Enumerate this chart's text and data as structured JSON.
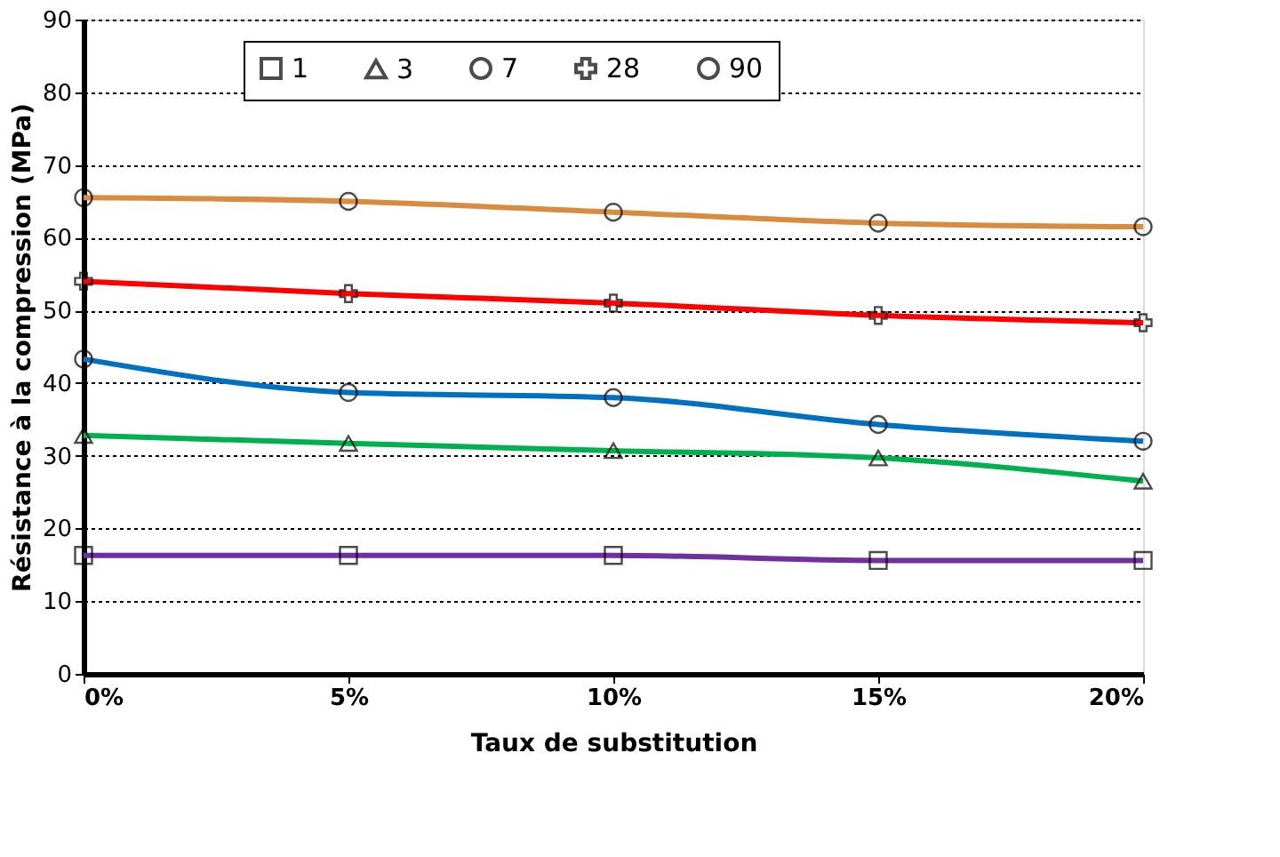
{
  "chart_data": {
    "type": "line",
    "xlabel": "Taux de substitution",
    "ylabel": "Résistance à la compression (MPa)",
    "categories": [
      "0%",
      "5%",
      "10%",
      "15%",
      "20%"
    ],
    "ylim": [
      0,
      90
    ],
    "yticks": [
      0,
      10,
      20,
      30,
      40,
      50,
      60,
      70,
      80,
      90
    ],
    "grid": "y",
    "legend": "top",
    "line_style": "solid",
    "series": [
      {
        "name": "1",
        "color": "#7030a0",
        "marker": "square",
        "values": [
          16.3,
          16.3,
          16.3,
          15.6,
          15.6
        ]
      },
      {
        "name": "3",
        "color": "#00b050",
        "marker": "triangle",
        "values": [
          32.8,
          31.7,
          30.7,
          29.7,
          26.5
        ]
      },
      {
        "name": "7",
        "color": "#0070c0",
        "marker": "circle",
        "values": [
          43.3,
          38.7,
          38,
          34.3,
          32
        ]
      },
      {
        "name": "28",
        "color": "#ff0000",
        "marker": "cross",
        "values": [
          54,
          52.3,
          51,
          49.3,
          48.3
        ]
      },
      {
        "name": "90",
        "color": "#d98c40",
        "marker": "circle",
        "values": [
          65.5,
          65,
          63.5,
          62,
          61.5
        ]
      }
    ]
  }
}
